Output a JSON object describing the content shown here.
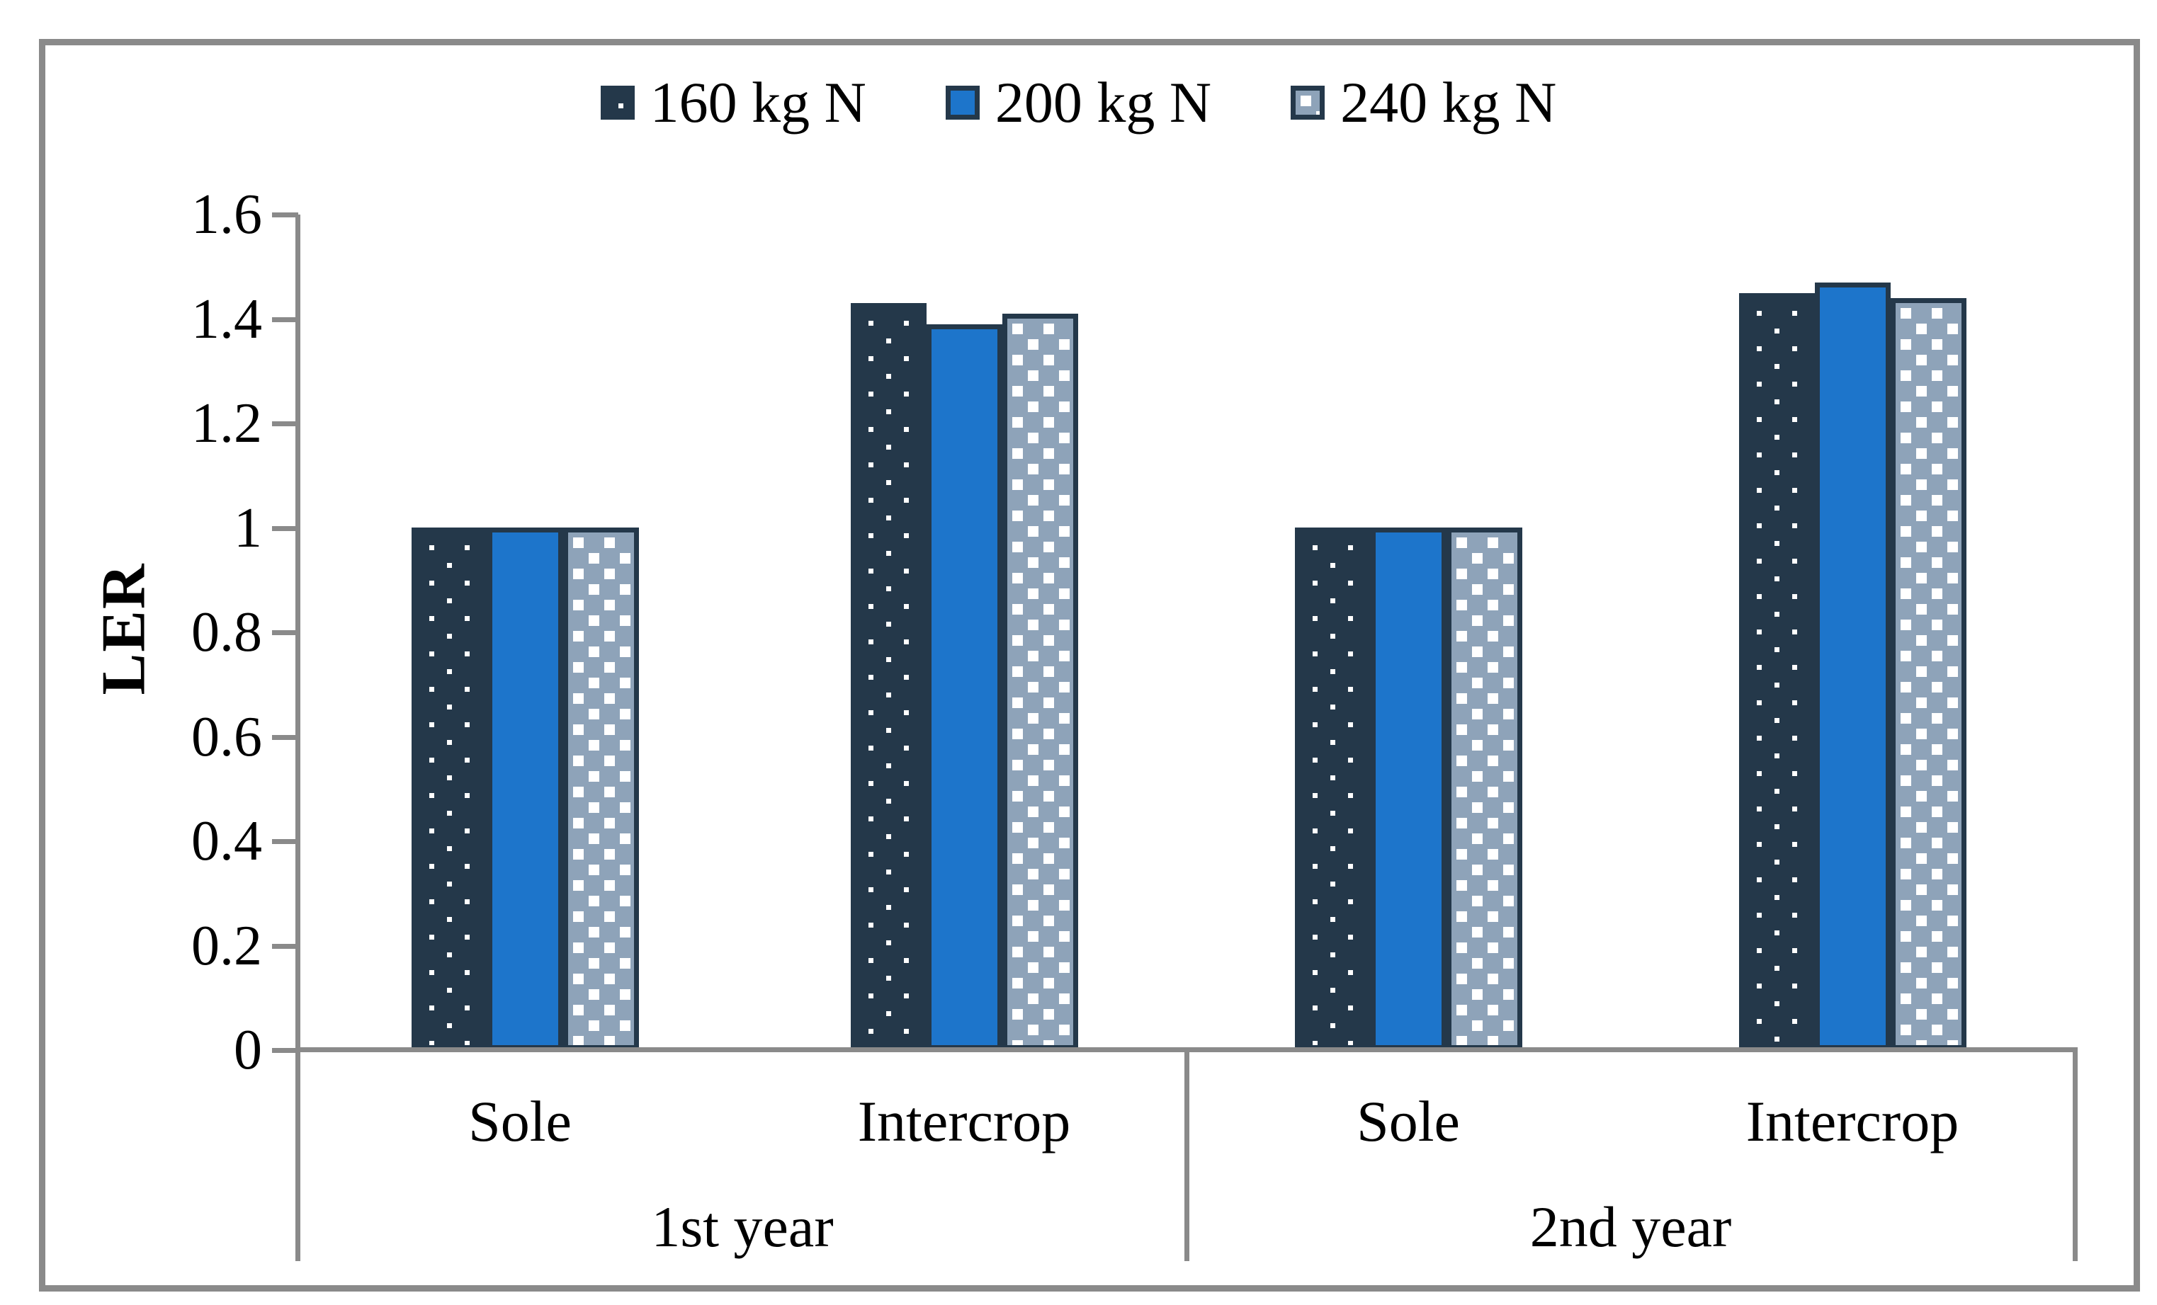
{
  "legend": {
    "items": [
      {
        "label": "160 kg N",
        "pattern": "dark-dotted"
      },
      {
        "label": "200 kg N",
        "pattern": "solid-blue"
      },
      {
        "label": "240 kg N",
        "pattern": "light-checker"
      }
    ]
  },
  "chart_data": {
    "type": "bar",
    "title": "",
    "xlabel": "",
    "ylabel": "LER",
    "ylim": [
      0,
      1.6
    ],
    "ytick_step": 0.2,
    "ytick_labels": [
      "0",
      "0.2",
      "0.4",
      "0.6",
      "0.8",
      "1",
      "1.2",
      "1.4",
      "1.6"
    ],
    "grid": false,
    "legend_position": "top-center",
    "categories": [
      "Sole (1st year)",
      "Intercrop (1st year)",
      "Sole (2nd year)",
      "Intercrop (2nd year)"
    ],
    "group_labels": [
      {
        "year": "1st year",
        "categories": [
          "Sole",
          "Intercrop"
        ]
      },
      {
        "year": "2nd year",
        "categories": [
          "Sole",
          "Intercrop"
        ]
      }
    ],
    "series": [
      {
        "name": "160 kg N",
        "values": [
          1.0,
          1.43,
          1.0,
          1.45
        ]
      },
      {
        "name": "200 kg N",
        "values": [
          1.0,
          1.39,
          1.0,
          1.47
        ]
      },
      {
        "name": "240 kg N",
        "values": [
          1.0,
          1.41,
          1.0,
          1.44
        ]
      }
    ]
  },
  "colors": {
    "dark_navy": "#24384a",
    "bright_blue": "#1d75cb",
    "light_blue_gray": "#8ea3b9",
    "axis_gray": "#8a8a8a",
    "pattern_dot": "#ffffff",
    "text": "#000000"
  }
}
